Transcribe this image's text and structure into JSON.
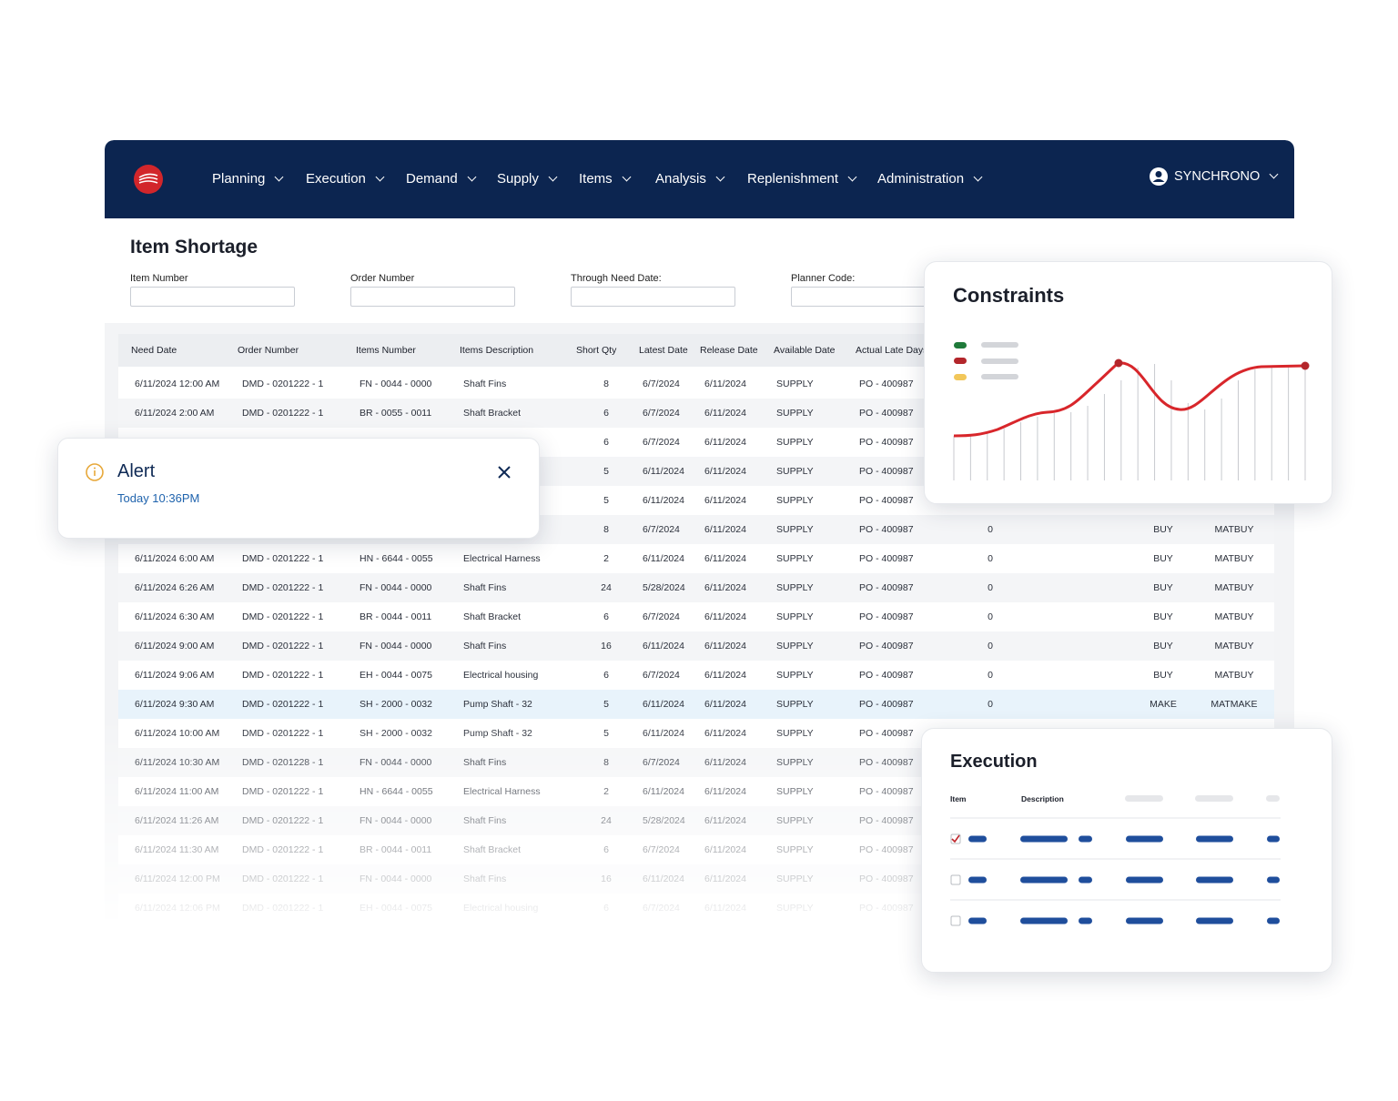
{
  "nav": {
    "items": [
      "Planning",
      "Execution",
      "Demand",
      "Supply",
      "Items",
      "Analysis",
      "Replenishment",
      "Administration"
    ],
    "user": "SYNCHRONO"
  },
  "page": {
    "title": "Item Shortage",
    "filters": [
      "Item Number",
      "Order Number",
      "Through Need Date:",
      "Planner Code:"
    ]
  },
  "table": {
    "headers": [
      "Need Date",
      "Order Number",
      "Items Number",
      "Items Description",
      "Short Qty",
      "Latest Date",
      "Release Date",
      "Available Date",
      "Actual Late Days"
    ],
    "rows": [
      [
        "6/11/2024 12:00 AM",
        "DMD - 0201222 - 1",
        "FN - 0044 - 0000",
        "Shaft Fins",
        8,
        "6/7/2024",
        "6/11/2024",
        "SUPPLY",
        "PO - 400987",
        null,
        null,
        null
      ],
      [
        "6/11/2024 2:00 AM",
        "DMD - 0201222 - 1",
        "BR - 0055 - 0011",
        "Shaft Bracket",
        6,
        "6/7/2024",
        "6/11/2024",
        "SUPPLY",
        "PO - 400987",
        null,
        null,
        null
      ],
      [
        null,
        null,
        null,
        null,
        6,
        "6/7/2024",
        "6/11/2024",
        "SUPPLY",
        "PO - 400987",
        null,
        null,
        null
      ],
      [
        null,
        null,
        null,
        null,
        5,
        "6/11/2024",
        "6/11/2024",
        "SUPPLY",
        "PO - 400987",
        null,
        null,
        null
      ],
      [
        null,
        null,
        null,
        null,
        5,
        "6/11/2024",
        "6/11/2024",
        "SUPPLY",
        "PO - 400987",
        null,
        null,
        null
      ],
      [
        null,
        null,
        null,
        null,
        8,
        "6/7/2024",
        "6/11/2024",
        "SUPPLY",
        "PO - 400987",
        0,
        "BUY",
        "MATBUY"
      ],
      [
        "6/11/2024 6:00 AM",
        "DMD - 0201222 - 1",
        "HN - 6644 - 0055",
        "Electrical Harness",
        2,
        "6/11/2024",
        "6/11/2024",
        "SUPPLY",
        "PO - 400987",
        0,
        "BUY",
        "MATBUY"
      ],
      [
        "6/11/2024 6:26 AM",
        "DMD - 0201222 - 1",
        "FN - 0044 - 0000",
        "Shaft Fins",
        24,
        "5/28/2024",
        "6/11/2024",
        "SUPPLY",
        "PO - 400987",
        0,
        "BUY",
        "MATBUY"
      ],
      [
        "6/11/2024 6:30 AM",
        "DMD - 0201222 - 1",
        "BR - 0044 - 0011",
        "Shaft Bracket",
        6,
        "6/7/2024",
        "6/11/2024",
        "SUPPLY",
        "PO - 400987",
        0,
        "BUY",
        "MATBUY"
      ],
      [
        "6/11/2024 9:00 AM",
        "DMD - 0201222 - 1",
        "FN - 0044 - 0000",
        "Shaft Fins",
        16,
        "6/11/2024",
        "6/11/2024",
        "SUPPLY",
        "PO - 400987",
        0,
        "BUY",
        "MATBUY"
      ],
      [
        "6/11/2024 9:06 AM",
        "DMD - 0201222 - 1",
        "EH - 0044 - 0075",
        "Electrical housing",
        6,
        "6/7/2024",
        "6/11/2024",
        "SUPPLY",
        "PO - 400987",
        0,
        "BUY",
        "MATBUY"
      ],
      [
        "6/11/2024 9:30 AM",
        "DMD - 0201222 - 1",
        "SH - 2000 - 0032",
        "Pump Shaft - 32",
        5,
        "6/11/2024",
        "6/11/2024",
        "SUPPLY",
        "PO - 400987",
        0,
        "MAKE",
        "MATMAKE"
      ],
      [
        "6/11/2024 10:00 AM",
        "DMD - 0201222 - 1",
        "SH - 2000 - 0032",
        "Pump Shaft - 32",
        5,
        "6/11/2024",
        "6/11/2024",
        "SUPPLY",
        "PO - 400987",
        null,
        null,
        null
      ],
      [
        "6/11/2024 10:30 AM",
        "DMD - 0201228 - 1",
        "FN - 0044 - 0000",
        "Shaft Fins",
        8,
        "6/7/2024",
        "6/11/2024",
        "SUPPLY",
        "PO - 400987",
        null,
        null,
        null
      ],
      [
        "6/11/2024 11:00 AM",
        "DMD - 0201222 - 1",
        "HN - 6644 - 0055",
        "Electrical Harness",
        2,
        "6/11/2024",
        "6/11/2024",
        "SUPPLY",
        "PO - 400987",
        null,
        null,
        null
      ],
      [
        "6/11/2024 11:26 AM",
        "DMD - 0201222 - 1",
        "FN - 0044 - 0000",
        "Shaft Fins",
        24,
        "5/28/2024",
        "6/11/2024",
        "SUPPLY",
        "PO - 400987",
        null,
        null,
        null
      ],
      [
        "6/11/2024 11:30 AM",
        "DMD - 0201222 - 1",
        "BR - 0044 - 0011",
        "Shaft Bracket",
        6,
        "6/7/2024",
        "6/11/2024",
        "SUPPLY",
        "PO - 400987",
        null,
        null,
        null
      ],
      [
        "6/11/2024 12:00 PM",
        "DMD - 0201222 - 1",
        "FN - 0044 - 0000",
        "Shaft Fins",
        16,
        "6/11/2024",
        "6/11/2024",
        "SUPPLY",
        "PO - 400987",
        null,
        null,
        null
      ],
      [
        "6/11/2024 12:06 PM",
        "DMD - 0201222 - 1",
        "EH - 0044 - 0075",
        "Electrical housing",
        6,
        "6/7/2024",
        "6/11/2024",
        "SUPPLY",
        "PO - 400987",
        null,
        null,
        null
      ]
    ]
  },
  "alert": {
    "title": "Alert",
    "time": "Today 10:36PM"
  },
  "constraints": {
    "title": "Constraints"
  },
  "execution": {
    "title": "Execution",
    "headers": [
      "Item",
      "Description"
    ]
  }
}
